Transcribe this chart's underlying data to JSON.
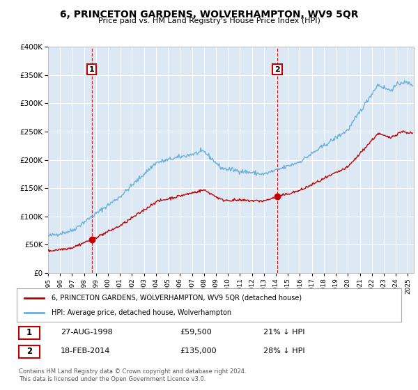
{
  "title": "6, PRINCETON GARDENS, WOLVERHAMPTON, WV9 5QR",
  "subtitle": "Price paid vs. HM Land Registry's House Price Index (HPI)",
  "ylim": [
    0,
    400000
  ],
  "xlim_start": 1995.0,
  "xlim_end": 2025.5,
  "background_color": "#ffffff",
  "plot_bg_color": "#dce9f5",
  "grid_color": "#ffffff",
  "hpi_color": "#6baed6",
  "price_color": "#c00000",
  "sale1_date": 1998.65,
  "sale1_price": 59500,
  "sale2_date": 2014.12,
  "sale2_price": 135000,
  "legend_label_price": "6, PRINCETON GARDENS, WOLVERHAMPTON, WV9 5QR (detached house)",
  "legend_label_hpi": "HPI: Average price, detached house, Wolverhampton",
  "note1_num": "1",
  "note1_date": "27-AUG-1998",
  "note1_price": "£59,500",
  "note1_pct": "21% ↓ HPI",
  "note2_num": "2",
  "note2_date": "18-FEB-2014",
  "note2_price": "£135,000",
  "note2_pct": "28% ↓ HPI",
  "footer": "Contains HM Land Registry data © Crown copyright and database right 2024.\nThis data is licensed under the Open Government Licence v3.0."
}
